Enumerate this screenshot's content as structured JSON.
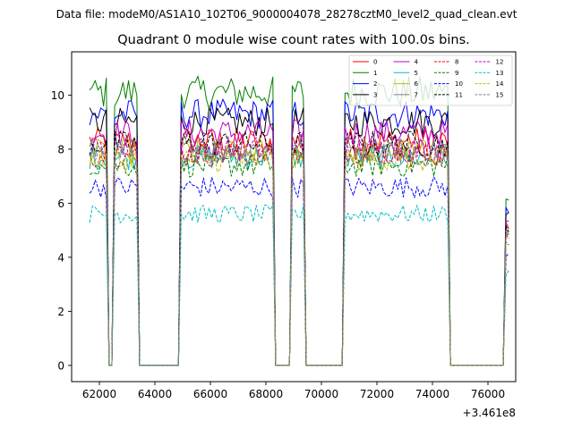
{
  "suptitle": "Data file: modeM0/AS1A10_102T06_9000004078_28278cztM0_level2_quad_clean.evt",
  "chart_data": {
    "type": "line",
    "title": "Quadrant 0 module wise count rates with 100.0s bins.",
    "xlabel": "",
    "ylabel": "",
    "x_offset_label": "+3.461e8",
    "xlim": [
      61000,
      77000
    ],
    "ylim": [
      -0.6,
      11.6
    ],
    "x_ticks": [
      62000,
      64000,
      66000,
      68000,
      70000,
      72000,
      74000,
      76000
    ],
    "x_tick_labels": [
      "62000",
      "64000",
      "66000",
      "68000",
      "70000",
      "72000",
      "74000",
      "76000"
    ],
    "y_ticks": [
      0,
      2,
      4,
      6,
      8,
      10
    ],
    "y_tick_labels": [
      "0",
      "2",
      "4",
      "6",
      "8",
      "10"
    ],
    "legend_position": "top-right",
    "legend_columns": 4,
    "bin_start": 61650,
    "bin_width": 100,
    "active_segments": [
      {
        "start": 61650,
        "end": 62250
      },
      {
        "start": 62550,
        "end": 63350
      },
      {
        "start": 64950,
        "end": 68250
      },
      {
        "start": 68950,
        "end": 69350
      },
      {
        "start": 70850,
        "end": 74550
      },
      {
        "start": 76650,
        "end": 76750
      }
    ],
    "series": [
      {
        "name": "0",
        "color": "#ff0000",
        "dash": "solid",
        "level": 8.3
      },
      {
        "name": "1",
        "color": "#008000",
        "dash": "solid",
        "level": 10.1
      },
      {
        "name": "2",
        "color": "#0000ff",
        "dash": "solid",
        "level": 9.3
      },
      {
        "name": "3",
        "color": "#000000",
        "dash": "solid",
        "level": 9.0
      },
      {
        "name": "4",
        "color": "#bf00bf",
        "dash": "solid",
        "level": 8.6
      },
      {
        "name": "5",
        "color": "#00bfbf",
        "dash": "solid",
        "level": 7.7
      },
      {
        "name": "6",
        "color": "#bfbf00",
        "dash": "solid",
        "level": 7.9
      },
      {
        "name": "7",
        "color": "#808080",
        "dash": "solid",
        "level": 8.0
      },
      {
        "name": "8",
        "color": "#ff0000",
        "dash": "dashed",
        "level": 7.8
      },
      {
        "name": "9",
        "color": "#008000",
        "dash": "dashed",
        "level": 7.4
      },
      {
        "name": "10",
        "color": "#0000ff",
        "dash": "dashed",
        "level": 6.6
      },
      {
        "name": "11",
        "color": "#000000",
        "dash": "dashed",
        "level": 8.2
      },
      {
        "name": "12",
        "color": "#bf00bf",
        "dash": "dashed",
        "level": 8.0
      },
      {
        "name": "13",
        "color": "#00bfbf",
        "dash": "dashed",
        "level": 5.6
      },
      {
        "name": "14",
        "color": "#bfbf00",
        "dash": "dashed",
        "level": 7.6
      },
      {
        "name": "15",
        "color": "#808080",
        "dash": "dashed",
        "level": 7.8
      }
    ]
  }
}
